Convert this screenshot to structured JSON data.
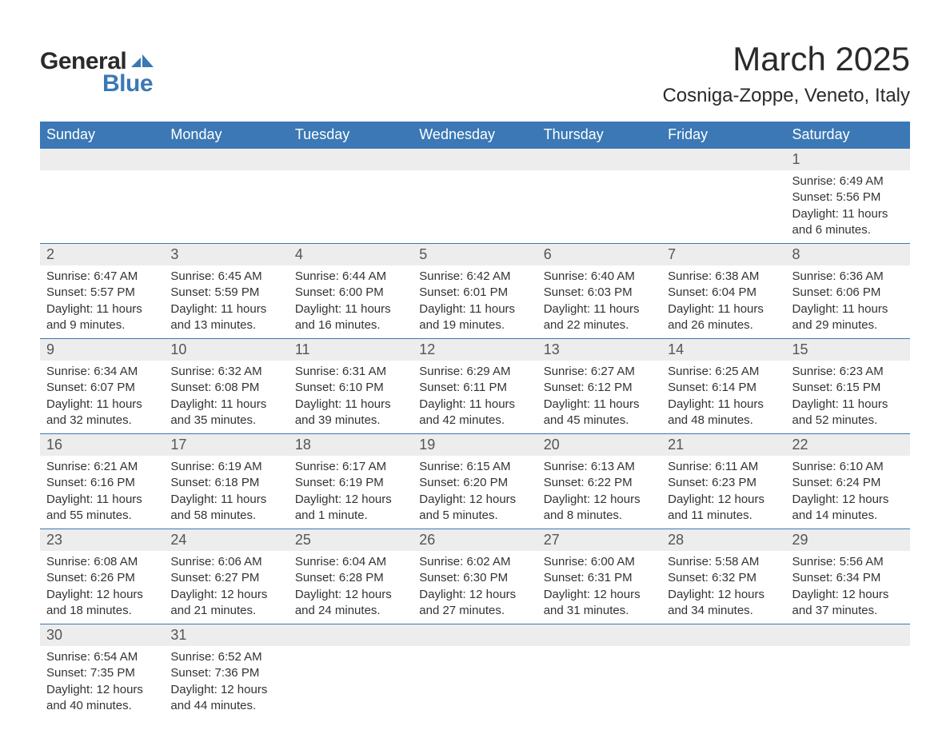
{
  "logo": {
    "word1": "General",
    "word2": "Blue"
  },
  "title": "March 2025",
  "location": "Cosniga-Zoppe, Veneto, Italy",
  "colors": {
    "header_bg": "#3b78b5",
    "header_text": "#ffffff",
    "daynum_bg": "#ededed",
    "daynum_text": "#555555",
    "body_text": "#333333",
    "row_border": "#3b78b5",
    "page_bg": "#ffffff",
    "logo_dark": "#2a2a2a",
    "logo_blue": "#3b78b5"
  },
  "typography": {
    "title_fontsize": 42,
    "location_fontsize": 24,
    "header_fontsize": 18,
    "daynum_fontsize": 18,
    "detail_fontsize": 15,
    "font_family": "Arial"
  },
  "day_headers": [
    "Sunday",
    "Monday",
    "Tuesday",
    "Wednesday",
    "Thursday",
    "Friday",
    "Saturday"
  ],
  "weeks": [
    [
      null,
      null,
      null,
      null,
      null,
      null,
      {
        "n": "1",
        "sr": "Sunrise: 6:49 AM",
        "ss": "Sunset: 5:56 PM",
        "dl": "Daylight: 11 hours and 6 minutes."
      }
    ],
    [
      {
        "n": "2",
        "sr": "Sunrise: 6:47 AM",
        "ss": "Sunset: 5:57 PM",
        "dl": "Daylight: 11 hours and 9 minutes."
      },
      {
        "n": "3",
        "sr": "Sunrise: 6:45 AM",
        "ss": "Sunset: 5:59 PM",
        "dl": "Daylight: 11 hours and 13 minutes."
      },
      {
        "n": "4",
        "sr": "Sunrise: 6:44 AM",
        "ss": "Sunset: 6:00 PM",
        "dl": "Daylight: 11 hours and 16 minutes."
      },
      {
        "n": "5",
        "sr": "Sunrise: 6:42 AM",
        "ss": "Sunset: 6:01 PM",
        "dl": "Daylight: 11 hours and 19 minutes."
      },
      {
        "n": "6",
        "sr": "Sunrise: 6:40 AM",
        "ss": "Sunset: 6:03 PM",
        "dl": "Daylight: 11 hours and 22 minutes."
      },
      {
        "n": "7",
        "sr": "Sunrise: 6:38 AM",
        "ss": "Sunset: 6:04 PM",
        "dl": "Daylight: 11 hours and 26 minutes."
      },
      {
        "n": "8",
        "sr": "Sunrise: 6:36 AM",
        "ss": "Sunset: 6:06 PM",
        "dl": "Daylight: 11 hours and 29 minutes."
      }
    ],
    [
      {
        "n": "9",
        "sr": "Sunrise: 6:34 AM",
        "ss": "Sunset: 6:07 PM",
        "dl": "Daylight: 11 hours and 32 minutes."
      },
      {
        "n": "10",
        "sr": "Sunrise: 6:32 AM",
        "ss": "Sunset: 6:08 PM",
        "dl": "Daylight: 11 hours and 35 minutes."
      },
      {
        "n": "11",
        "sr": "Sunrise: 6:31 AM",
        "ss": "Sunset: 6:10 PM",
        "dl": "Daylight: 11 hours and 39 minutes."
      },
      {
        "n": "12",
        "sr": "Sunrise: 6:29 AM",
        "ss": "Sunset: 6:11 PM",
        "dl": "Daylight: 11 hours and 42 minutes."
      },
      {
        "n": "13",
        "sr": "Sunrise: 6:27 AM",
        "ss": "Sunset: 6:12 PM",
        "dl": "Daylight: 11 hours and 45 minutes."
      },
      {
        "n": "14",
        "sr": "Sunrise: 6:25 AM",
        "ss": "Sunset: 6:14 PM",
        "dl": "Daylight: 11 hours and 48 minutes."
      },
      {
        "n": "15",
        "sr": "Sunrise: 6:23 AM",
        "ss": "Sunset: 6:15 PM",
        "dl": "Daylight: 11 hours and 52 minutes."
      }
    ],
    [
      {
        "n": "16",
        "sr": "Sunrise: 6:21 AM",
        "ss": "Sunset: 6:16 PM",
        "dl": "Daylight: 11 hours and 55 minutes."
      },
      {
        "n": "17",
        "sr": "Sunrise: 6:19 AM",
        "ss": "Sunset: 6:18 PM",
        "dl": "Daylight: 11 hours and 58 minutes."
      },
      {
        "n": "18",
        "sr": "Sunrise: 6:17 AM",
        "ss": "Sunset: 6:19 PM",
        "dl": "Daylight: 12 hours and 1 minute."
      },
      {
        "n": "19",
        "sr": "Sunrise: 6:15 AM",
        "ss": "Sunset: 6:20 PM",
        "dl": "Daylight: 12 hours and 5 minutes."
      },
      {
        "n": "20",
        "sr": "Sunrise: 6:13 AM",
        "ss": "Sunset: 6:22 PM",
        "dl": "Daylight: 12 hours and 8 minutes."
      },
      {
        "n": "21",
        "sr": "Sunrise: 6:11 AM",
        "ss": "Sunset: 6:23 PM",
        "dl": "Daylight: 12 hours and 11 minutes."
      },
      {
        "n": "22",
        "sr": "Sunrise: 6:10 AM",
        "ss": "Sunset: 6:24 PM",
        "dl": "Daylight: 12 hours and 14 minutes."
      }
    ],
    [
      {
        "n": "23",
        "sr": "Sunrise: 6:08 AM",
        "ss": "Sunset: 6:26 PM",
        "dl": "Daylight: 12 hours and 18 minutes."
      },
      {
        "n": "24",
        "sr": "Sunrise: 6:06 AM",
        "ss": "Sunset: 6:27 PM",
        "dl": "Daylight: 12 hours and 21 minutes."
      },
      {
        "n": "25",
        "sr": "Sunrise: 6:04 AM",
        "ss": "Sunset: 6:28 PM",
        "dl": "Daylight: 12 hours and 24 minutes."
      },
      {
        "n": "26",
        "sr": "Sunrise: 6:02 AM",
        "ss": "Sunset: 6:30 PM",
        "dl": "Daylight: 12 hours and 27 minutes."
      },
      {
        "n": "27",
        "sr": "Sunrise: 6:00 AM",
        "ss": "Sunset: 6:31 PM",
        "dl": "Daylight: 12 hours and 31 minutes."
      },
      {
        "n": "28",
        "sr": "Sunrise: 5:58 AM",
        "ss": "Sunset: 6:32 PM",
        "dl": "Daylight: 12 hours and 34 minutes."
      },
      {
        "n": "29",
        "sr": "Sunrise: 5:56 AM",
        "ss": "Sunset: 6:34 PM",
        "dl": "Daylight: 12 hours and 37 minutes."
      }
    ],
    [
      {
        "n": "30",
        "sr": "Sunrise: 6:54 AM",
        "ss": "Sunset: 7:35 PM",
        "dl": "Daylight: 12 hours and 40 minutes."
      },
      {
        "n": "31",
        "sr": "Sunrise: 6:52 AM",
        "ss": "Sunset: 7:36 PM",
        "dl": "Daylight: 12 hours and 44 minutes."
      },
      null,
      null,
      null,
      null,
      null
    ]
  ]
}
